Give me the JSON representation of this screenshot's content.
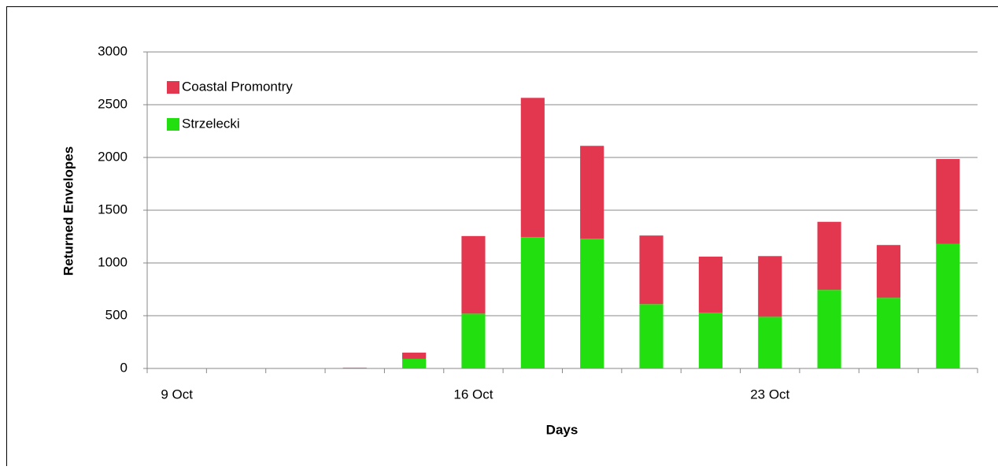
{
  "chart_data": {
    "type": "stacked_bar",
    "x_label": "Days",
    "y_label": "Returned Envelopes",
    "categories": [
      "9 Oct",
      null,
      null,
      null,
      null,
      "16 Oct",
      null,
      null,
      null,
      null,
      "23 Oct",
      null,
      null,
      null
    ],
    "series": [
      {
        "name": "Strzelecki",
        "color": "#22e010",
        "values": [
          0,
          0,
          0,
          5,
          90,
          520,
          1245,
          1230,
          610,
          530,
          490,
          745,
          670,
          1180
        ]
      },
      {
        "name": "Coastal Promontry",
        "color": "#e3364f",
        "values": [
          0,
          0,
          0,
          3,
          60,
          735,
          1320,
          880,
          650,
          530,
          575,
          645,
          500,
          805
        ]
      }
    ],
    "ylim": [
      0,
      3000
    ],
    "yticks": [
      0,
      500,
      1000,
      1500,
      2000,
      2500,
      3000
    ],
    "grid": true,
    "legend": "top-left"
  }
}
